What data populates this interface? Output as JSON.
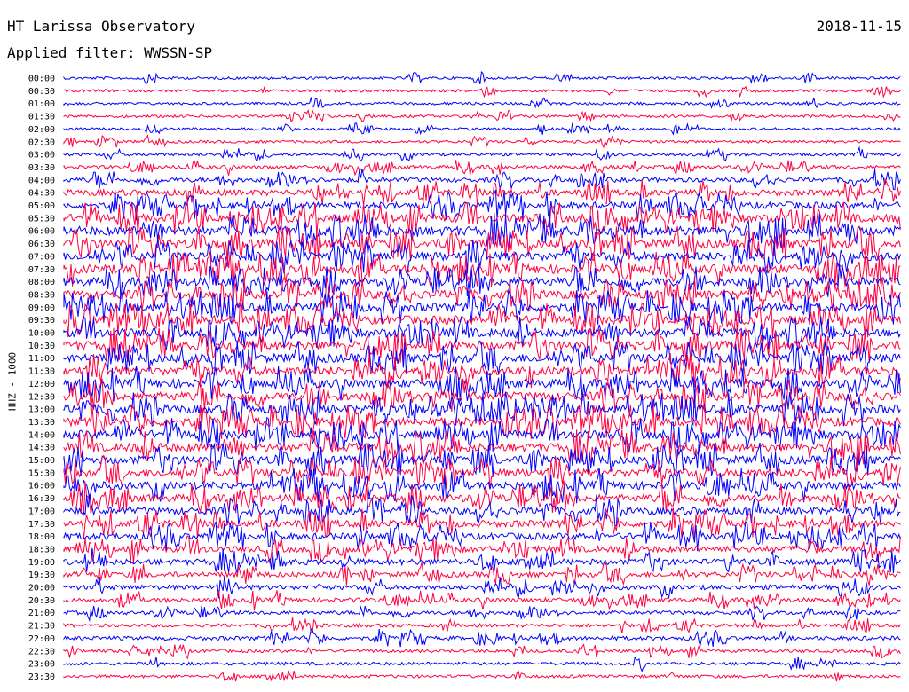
{
  "header": {
    "title": "HT Larissa Observatory",
    "date": "2018-11-15",
    "filter": "Applied filter: WWSSN-SP"
  },
  "chart_data": {
    "type": "line",
    "title": "HT Larissa Observatory",
    "date": "2018-11-15",
    "filter": "Applied filter: WWSSN-SP",
    "ylabel": "HHZ - 1000",
    "rows": [
      {
        "time": "00:00",
        "color": "#0000ff",
        "activity": 1
      },
      {
        "time": "00:30",
        "color": "#ff0040",
        "activity": 1
      },
      {
        "time": "01:00",
        "color": "#0000ff",
        "activity": 1
      },
      {
        "time": "01:30",
        "color": "#ff0040",
        "activity": 1
      },
      {
        "time": "02:00",
        "color": "#0000ff",
        "activity": 1
      },
      {
        "time": "02:30",
        "color": "#ff0040",
        "activity": 1
      },
      {
        "time": "03:00",
        "color": "#0000ff",
        "activity": 1.2
      },
      {
        "time": "03:30",
        "color": "#ff0040",
        "activity": 1.6
      },
      {
        "time": "04:00",
        "color": "#0000ff",
        "activity": 2.2
      },
      {
        "time": "04:30",
        "color": "#ff0040",
        "activity": 3
      },
      {
        "time": "05:00",
        "color": "#0000ff",
        "activity": 3.6
      },
      {
        "time": "05:30",
        "color": "#ff0040",
        "activity": 4.4
      },
      {
        "time": "06:00",
        "color": "#0000ff",
        "activity": 5
      },
      {
        "time": "06:30",
        "color": "#ff0040",
        "activity": 4.8
      },
      {
        "time": "07:00",
        "color": "#0000ff",
        "activity": 4.6
      },
      {
        "time": "07:30",
        "color": "#ff0040",
        "activity": 5
      },
      {
        "time": "08:00",
        "color": "#0000ff",
        "activity": 4.6
      },
      {
        "time": "08:30",
        "color": "#ff0040",
        "activity": 4.6
      },
      {
        "time": "09:00",
        "color": "#0000ff",
        "activity": 4.8
      },
      {
        "time": "09:30",
        "color": "#ff0040",
        "activity": 4.6
      },
      {
        "time": "10:00",
        "color": "#0000ff",
        "activity": 4.6
      },
      {
        "time": "10:30",
        "color": "#ff0040",
        "activity": 4.8
      },
      {
        "time": "11:00",
        "color": "#0000ff",
        "activity": 4.8
      },
      {
        "time": "11:30",
        "color": "#ff0040",
        "activity": 4.6
      },
      {
        "time": "12:00",
        "color": "#0000ff",
        "activity": 4.6
      },
      {
        "time": "12:30",
        "color": "#ff0040",
        "activity": 4.6
      },
      {
        "time": "13:00",
        "color": "#0000ff",
        "activity": 4.6
      },
      {
        "time": "13:30",
        "color": "#ff0040",
        "activity": 4.6
      },
      {
        "time": "14:00",
        "color": "#0000ff",
        "activity": 4.6
      },
      {
        "time": "14:30",
        "color": "#ff0040",
        "activity": 4.6
      },
      {
        "time": "15:00",
        "color": "#0000ff",
        "activity": 4.4
      },
      {
        "time": "15:30",
        "color": "#ff0040",
        "activity": 4.2
      },
      {
        "time": "16:00",
        "color": "#0000ff",
        "activity": 4.2
      },
      {
        "time": "16:30",
        "color": "#ff0040",
        "activity": 4
      },
      {
        "time": "17:00",
        "color": "#0000ff",
        "activity": 3.8
      },
      {
        "time": "17:30",
        "color": "#ff0040",
        "activity": 3.6
      },
      {
        "time": "18:00",
        "color": "#0000ff",
        "activity": 3.4
      },
      {
        "time": "18:30",
        "color": "#ff0040",
        "activity": 3.2
      },
      {
        "time": "19:00",
        "color": "#0000ff",
        "activity": 3
      },
      {
        "time": "19:30",
        "color": "#ff0040",
        "activity": 2.6
      },
      {
        "time": "20:00",
        "color": "#0000ff",
        "activity": 2.3
      },
      {
        "time": "20:30",
        "color": "#ff0040",
        "activity": 2
      },
      {
        "time": "21:00",
        "color": "#0000ff",
        "activity": 1.7
      },
      {
        "time": "21:30",
        "color": "#ff0040",
        "activity": 1.5
      },
      {
        "time": "22:00",
        "color": "#0000ff",
        "activity": 1.8
      },
      {
        "time": "22:30",
        "color": "#ff0040",
        "activity": 1.3
      },
      {
        "time": "23:00",
        "color": "#0000ff",
        "activity": 1.3
      },
      {
        "time": "23:30",
        "color": "#ff0040",
        "activity": 1.2
      }
    ]
  }
}
